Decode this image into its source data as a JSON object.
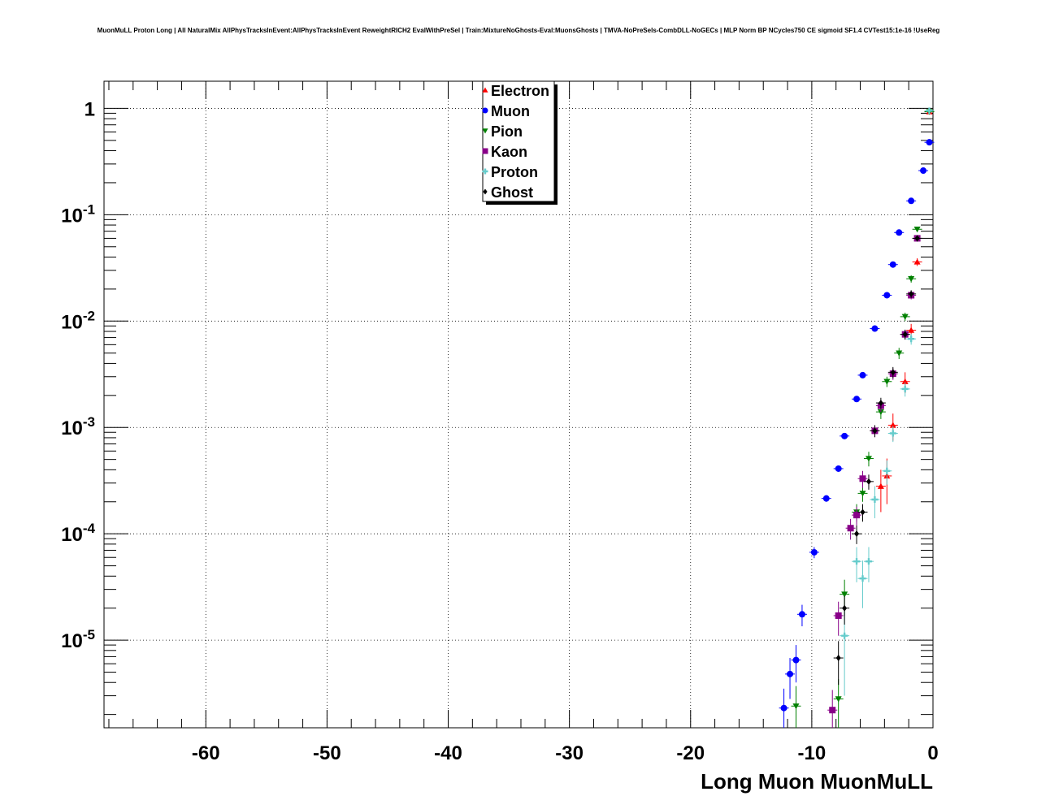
{
  "chart_data": {
    "type": "scatter",
    "title": "MuonMuLL Proton Long | All NaturalMix AllPhysTracksInEvent:AllPhysTracksInEvent ReweightRICH2 EvalWithPreSel | Train:MixtureNoGhosts-Eval:MuonsGhosts | TMVA-NoPreSels-CombDLL-NoGECs | MLP Norm BP NCycles750 CE sigmoid SF1.4 CVTest15:1e-16 !UseReg",
    "xlabel": "Long Muon MuonMuLL",
    "ylabel": "",
    "xlim": [
      -68.4,
      0
    ],
    "ylim": [
      1.5e-06,
      1.8
    ],
    "log_y": true,
    "grid": true,
    "legend_position": "top-center",
    "x_ticks": [
      -60,
      -50,
      -40,
      -30,
      -20,
      -10,
      0
    ],
    "x_tick_labels": [
      "-60",
      "-50",
      "-40",
      "-30",
      "-20",
      "-10",
      "0"
    ],
    "y_ticks": [
      1e-05,
      0.0001,
      0.001,
      0.01,
      0.1,
      1
    ],
    "y_tick_labels": [
      {
        "base": "10",
        "exp": "-5"
      },
      {
        "base": "10",
        "exp": "-4"
      },
      {
        "base": "10",
        "exp": "-3"
      },
      {
        "base": "10",
        "exp": "-2"
      },
      {
        "base": "10",
        "exp": "-1"
      },
      {
        "base": "1",
        "exp": ""
      }
    ],
    "series": [
      {
        "name": "Electron",
        "color": "#ff0000",
        "marker": "triangle-up",
        "points": [
          [
            -0.3,
            0.93
          ],
          [
            -1.3,
            0.036
          ],
          [
            -1.8,
            0.0082
          ],
          [
            -2.3,
            0.0027
          ],
          [
            -3.3,
            0.00105
          ],
          [
            -3.8,
            0.00035
          ],
          [
            -4.3,
            0.00028
          ]
        ],
        "errors": [
          0.02,
          0.003,
          0.0012,
          0.0006,
          0.0003,
          0.00016,
          0.00012
        ]
      },
      {
        "name": "Muon",
        "color": "#0000ff",
        "marker": "circle",
        "points": [
          [
            -0.3,
            0.48
          ],
          [
            -0.8,
            0.26
          ],
          [
            -1.8,
            0.135
          ],
          [
            -2.8,
            0.068
          ],
          [
            -3.3,
            0.034
          ],
          [
            -3.8,
            0.0175
          ],
          [
            -4.8,
            0.0085
          ],
          [
            -5.8,
            0.0031
          ],
          [
            -6.3,
            0.00185
          ],
          [
            -7.3,
            0.00083
          ],
          [
            -7.8,
            0.00041
          ],
          [
            -8.8,
            0.000215
          ],
          [
            -9.8,
            6.7e-05
          ],
          [
            -10.8,
            1.75e-05
          ],
          [
            -11.3,
            6.5e-06
          ],
          [
            -11.8,
            4.8e-06
          ],
          [
            -12.3,
            2.3e-06
          ]
        ],
        "errors": [
          0.005,
          0.003,
          0.002,
          0.001,
          0.0006,
          0.0004,
          0.0002,
          0.0001,
          6e-05,
          4e-05,
          2.5e-05,
          1.5e-05,
          8e-06,
          4e-06,
          2.5e-06,
          2e-06,
          1.2e-06
        ]
      },
      {
        "name": "Pion",
        "color": "#008000",
        "marker": "triangle-down",
        "points": [
          [
            -0.3,
            0.93
          ],
          [
            -1.3,
            0.073
          ],
          [
            -1.8,
            0.025
          ],
          [
            -2.3,
            0.011
          ],
          [
            -2.8,
            0.005
          ],
          [
            -3.8,
            0.0027
          ],
          [
            -4.3,
            0.0014
          ],
          [
            -5.3,
            0.00051
          ],
          [
            -5.8,
            0.00024
          ],
          [
            -6.3,
            0.00016
          ],
          [
            -7.3,
            2.7e-05
          ],
          [
            -7.8,
            2.8e-06
          ],
          [
            -11.3,
            2.4e-06
          ]
        ],
        "errors": [
          0.02,
          0.004,
          0.002,
          0.001,
          0.0006,
          0.0003,
          0.0002,
          8e-05,
          4e-05,
          3e-05,
          1e-05,
          1.5e-06,
          1.3e-06
        ]
      },
      {
        "name": "Kaon",
        "color": "#880088",
        "marker": "square",
        "points": [
          [
            -1.3,
            0.06
          ],
          [
            -1.8,
            0.0175
          ],
          [
            -2.3,
            0.0075
          ],
          [
            -3.3,
            0.0032
          ],
          [
            -4.3,
            0.0016
          ],
          [
            -4.8,
            0.00093
          ],
          [
            -5.8,
            0.00033
          ],
          [
            -6.3,
            0.00015
          ],
          [
            -6.8,
            0.000113
          ],
          [
            -7.8,
            1.7e-05
          ],
          [
            -8.3,
            2.2e-06
          ]
        ],
        "errors": [
          0.004,
          0.0015,
          0.0008,
          0.0004,
          0.0002,
          0.00012,
          6e-05,
          3e-05,
          2.5e-05,
          6e-06,
          1.2e-06
        ]
      },
      {
        "name": "Proton",
        "color": "#66cccc",
        "marker": "plus",
        "points": [
          [
            -0.3,
            0.95
          ],
          [
            -1.8,
            0.0068
          ],
          [
            -2.3,
            0.0023
          ],
          [
            -3.3,
            0.00088
          ],
          [
            -3.8,
            0.00039
          ],
          [
            -4.8,
            0.00021
          ],
          [
            -5.3,
            5.5e-05
          ],
          [
            -5.8,
            3.8e-05
          ],
          [
            -6.3,
            5.5e-05
          ],
          [
            -7.3,
            1.1e-05
          ]
        ],
        "errors": [
          0.02,
          0.0008,
          0.00035,
          0.00015,
          0.0001,
          7e-05,
          2e-05,
          1.8e-05,
          2e-05,
          8e-06
        ]
      },
      {
        "name": "Ghost",
        "color": "#000000",
        "marker": "diamond",
        "points": [
          [
            -1.3,
            0.06
          ],
          [
            -1.8,
            0.018
          ],
          [
            -2.3,
            0.0075
          ],
          [
            -3.3,
            0.0033
          ],
          [
            -4.3,
            0.0017
          ],
          [
            -4.8,
            0.00093
          ],
          [
            -5.3,
            0.00031
          ],
          [
            -5.8,
            0.00016
          ],
          [
            -6.3,
            0.0001
          ],
          [
            -7.3,
            2e-05
          ],
          [
            -7.8,
            6.8e-06
          ]
        ],
        "errors": [
          0.004,
          0.0015,
          0.0008,
          0.0004,
          0.0002,
          0.00012,
          5e-05,
          3e-05,
          2e-05,
          6e-06,
          3e-06
        ]
      }
    ]
  }
}
